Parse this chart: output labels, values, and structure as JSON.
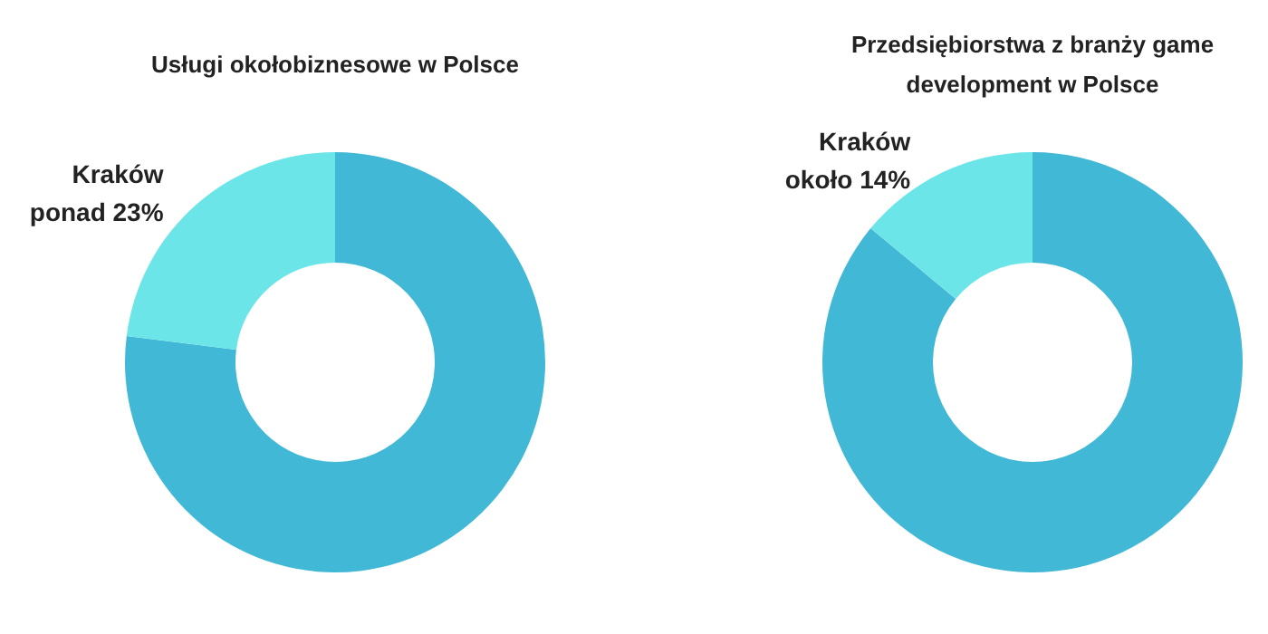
{
  "chart_data": [
    {
      "type": "donut",
      "title": "Usługi okołobiznesowe w Polsce",
      "categories": [
        null,
        "Kraków"
      ],
      "values": [
        77,
        23
      ],
      "colors": [
        "#41b8d5",
        "#6ce5e8"
      ],
      "value_labels": [
        null,
        "ponad 23%"
      ]
    },
    {
      "type": "donut",
      "title": "Przedsiębiorstwa z branży game development w Polsce",
      "categories": [
        null,
        "Kraków"
      ],
      "values": [
        86,
        14
      ],
      "colors": [
        "#41b8d5",
        "#6ce5e8"
      ],
      "value_labels": [
        null,
        "około 14%"
      ]
    }
  ]
}
